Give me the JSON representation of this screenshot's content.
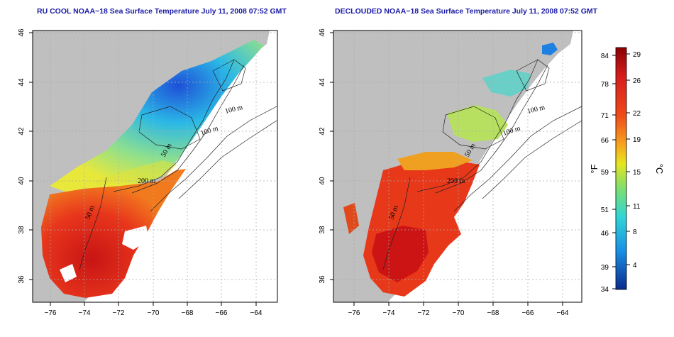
{
  "panels": [
    {
      "title": "RU COOL NOAA−18 Sea Surface Temperature July 11, 2008 07:52 GMT",
      "contours": [
        "100 m",
        "100 m",
        "50 m",
        "200 m",
        "50 m"
      ]
    },
    {
      "title": "DECLOUDED NOAA−18 Sea Surface Temperature July 11, 2008 07:52 GMT",
      "contours": [
        "100 m",
        "100 m",
        "50 m",
        "200 m",
        "50 m"
      ]
    }
  ],
  "axes": {
    "x_ticks": [
      "−76",
      "−74",
      "−72",
      "−70",
      "−68",
      "−66",
      "−64"
    ],
    "y_ticks": [
      "36",
      "38",
      "40",
      "42",
      "44",
      "46"
    ]
  },
  "colorbar": {
    "fahrenheit_label": "°F",
    "celsius_label": "°C",
    "fahrenheit_ticks": [
      "84",
      "78",
      "71",
      "66",
      "59",
      "51",
      "46",
      "39",
      "34"
    ],
    "celsius_ticks": [
      "29",
      "26",
      "22",
      "19",
      "15",
      "11",
      "8",
      "4"
    ],
    "colors": [
      "#8b0000",
      "#d71d1d",
      "#f04a1a",
      "#f6a31d",
      "#e6e61e",
      "#7fdf6b",
      "#2fd6d6",
      "#1a8fe6",
      "#0a2a8c"
    ]
  },
  "colors": {
    "land": "#bfbfbf",
    "grid": "#aaaaaa"
  }
}
